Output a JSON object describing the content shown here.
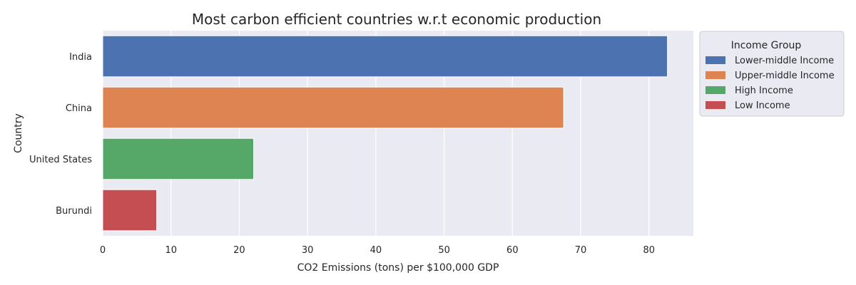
{
  "chart_data": {
    "type": "bar",
    "orientation": "horizontal",
    "title": "Most carbon efficient countries w.r.t economic production",
    "xlabel": "CO2 Emissions (tons) per $100,000 GDP",
    "ylabel": "Country",
    "xlim": [
      0,
      86.5
    ],
    "xticks": [
      "0",
      "10",
      "20",
      "30",
      "40",
      "50",
      "60",
      "70",
      "80"
    ],
    "grid": true,
    "categories": [
      "India",
      "China",
      "United States",
      "Burundi"
    ],
    "values": [
      82.7,
      67.5,
      22.1,
      7.9
    ],
    "groups": [
      "Lower-middle Income",
      "Upper-middle Income",
      "High Income",
      "Low Income"
    ],
    "legend": {
      "title": "Income Group",
      "placement": "outside-top-right",
      "entries": [
        {
          "label": "Lower-middle Income",
          "color": "#4c72b0"
        },
        {
          "label": "Upper-middle Income",
          "color": "#dd8452"
        },
        {
          "label": "High Income",
          "color": "#55a868"
        },
        {
          "label": "Low Income",
          "color": "#c44e52"
        }
      ]
    },
    "colors": {
      "background": "#eaeaf2",
      "grid": "#ffffff",
      "text": "#262626"
    }
  }
}
